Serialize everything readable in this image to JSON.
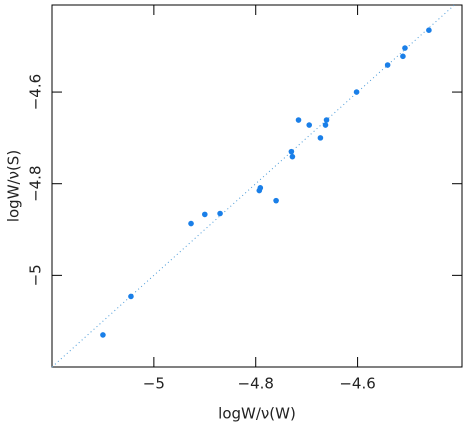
{
  "chart_data": {
    "type": "scatter",
    "x_label": "logW/ν(W)",
    "y_label": "logW/ν(S)",
    "xlim": [
      -5.2,
      -4.395
    ],
    "ylim": [
      -5.2,
      -4.41
    ],
    "xticks": [
      {
        "value": -5,
        "label": "−5"
      },
      {
        "value": -4.8,
        "label": "−4.8"
      },
      {
        "value": -4.6,
        "label": "−4.6"
      }
    ],
    "yticks": [
      {
        "value": -5,
        "label": "−5"
      },
      {
        "value": -4.8,
        "label": "−4.8"
      },
      {
        "value": -4.6,
        "label": "−4.6"
      }
    ],
    "color": "#1a7fe8",
    "x": [
      -5.1,
      -5.045,
      -4.927,
      -4.9,
      -4.87,
      -4.793,
      -4.791,
      -4.76,
      -4.73,
      -4.728,
      -4.716,
      -4.695,
      -4.673,
      -4.663,
      -4.661,
      -4.602,
      -4.541,
      -4.511,
      -4.507,
      -4.46
    ],
    "values": [
      -5.13,
      -5.046,
      -4.887,
      -4.867,
      -4.865,
      -4.815,
      -4.809,
      -4.837,
      -4.73,
      -4.741,
      -4.661,
      -4.672,
      -4.7,
      -4.672,
      -4.661,
      -4.6,
      -4.541,
      -4.522,
      -4.504,
      -4.465
    ]
  }
}
